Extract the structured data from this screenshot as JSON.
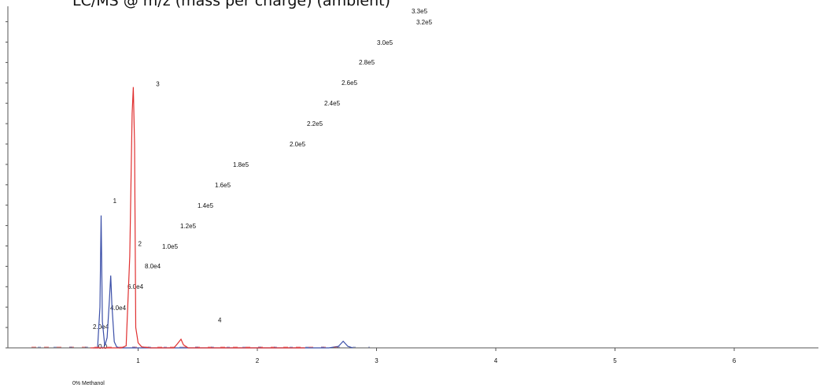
{
  "chart_data": {
    "type": "line",
    "title": "LC/MS @ m/z (mass per charge) (ambient)",
    "bottom_label": "0% Methanol",
    "xlabel": "",
    "ylabel": "",
    "xlim": [
      0,
      6.6
    ],
    "ylim": [
      0,
      330000
    ],
    "x_ticks": [
      "1",
      "2",
      "3",
      "4",
      "5",
      "6"
    ],
    "y_ticks": [
      "0.0",
      "2.0e4",
      "4.0e4",
      "6.0e4",
      "8.0e4",
      "1.0e5",
      "1.2e5",
      "1.4e5",
      "1.6e5",
      "1.8e5",
      "2.0e5",
      "2.2e5",
      "2.4e5",
      "2.6e5",
      "2.8e5",
      "3.0e5",
      "3.2e5",
      "3.3e5"
    ],
    "grid": false,
    "series": [
      {
        "color": "#3b4fa8",
        "x": [
          0.62,
          0.66,
          0.68,
          0.69,
          0.7,
          0.72,
          0.74,
          0.76,
          0.77,
          0.78,
          0.8,
          0.82,
          0.84,
          0.86,
          0.9,
          2.6,
          2.68,
          2.72,
          2.76,
          2.8
        ],
        "y": [
          0,
          0,
          40000,
          130000,
          26000,
          2000,
          10000,
          48000,
          71000,
          42000,
          6000,
          1000,
          0,
          0,
          0,
          0,
          1500,
          6500,
          1500,
          0
        ]
      },
      {
        "color": "#e03030",
        "x": [
          0.6,
          0.86,
          0.9,
          0.93,
          0.95,
          0.96,
          0.97,
          0.98,
          1.0,
          1.03,
          1.1,
          1.3,
          1.33,
          1.36,
          1.38,
          1.42,
          1.5,
          1.8,
          2.0,
          2.1,
          2.3,
          2.4
        ],
        "y": [
          0,
          0,
          2000,
          90000,
          230000,
          256000,
          200000,
          20000,
          5000,
          1000,
          0,
          0,
          4000,
          8500,
          3000,
          0,
          0,
          0,
          0,
          0,
          0,
          0
        ]
      }
    ],
    "peak_labels": [
      {
        "text": "1",
        "x": 0.79,
        "y": 142000
      },
      {
        "text": "2",
        "x": 1.0,
        "y": 100000
      },
      {
        "text": "3",
        "x": 1.15,
        "y": 257000
      },
      {
        "text": "4",
        "x": 1.67,
        "y": 25000
      }
    ]
  }
}
